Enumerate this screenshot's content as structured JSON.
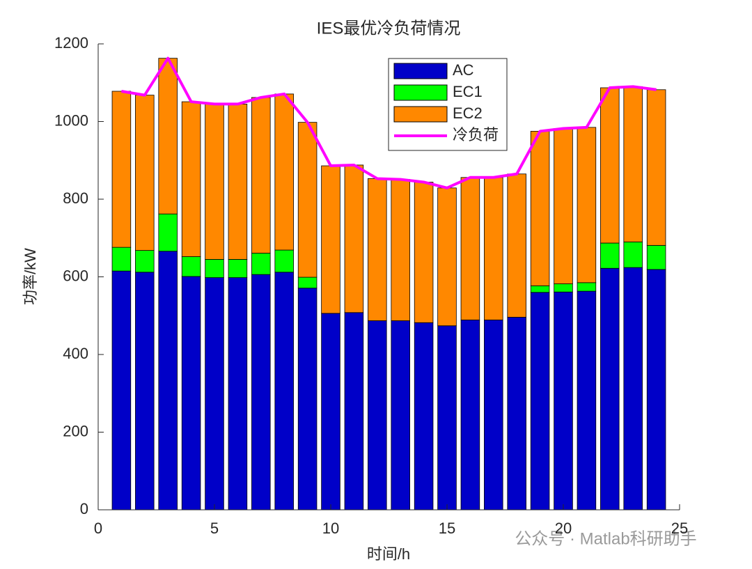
{
  "chart_data": {
    "type": "bar",
    "stacked": true,
    "title": "IES最优冷负荷情况",
    "xlabel": "时间/h",
    "ylabel": "功率/kW",
    "x": [
      1,
      2,
      3,
      4,
      5,
      6,
      7,
      8,
      9,
      10,
      11,
      12,
      13,
      14,
      15,
      16,
      17,
      18,
      19,
      20,
      21,
      22,
      23,
      24
    ],
    "series": [
      {
        "name": "AC",
        "color": "#0000c8",
        "values": [
          615,
          612,
          666,
          601,
          598,
          598,
          606,
          612,
          571,
          506,
          508,
          487,
          487,
          482,
          474,
          489,
          489,
          496,
          560,
          561,
          563,
          622,
          624,
          619
        ]
      },
      {
        "name": "EC1",
        "color": "#00ff00",
        "values": [
          61,
          56,
          96,
          51,
          47,
          47,
          55,
          57,
          28,
          0,
          0,
          0,
          0,
          0,
          0,
          0,
          0,
          0,
          17,
          21,
          22,
          65,
          66,
          62
        ]
      },
      {
        "name": "EC2",
        "color": "#ff8800",
        "values": [
          402,
          400,
          401,
          399,
          400,
          400,
          401,
          402,
          399,
          380,
          380,
          366,
          364,
          362,
          355,
          367,
          367,
          369,
          398,
          400,
          400,
          400,
          400,
          401
        ]
      },
      {
        "name": "冷负荷",
        "type": "line",
        "color": "#ff00ff",
        "values": [
          1078,
          1068,
          1163,
          1051,
          1045,
          1045,
          1062,
          1071,
          998,
          886,
          888,
          853,
          851,
          844,
          829,
          856,
          856,
          865,
          975,
          982,
          985,
          1087,
          1090,
          1082
        ]
      }
    ],
    "xlim": [
      0,
      25
    ],
    "xticks": [
      0,
      5,
      10,
      15,
      20,
      25
    ],
    "ylim": [
      0,
      1200
    ],
    "yticks": [
      0,
      200,
      400,
      600,
      800,
      1000,
      1200
    ],
    "legend": "top-center",
    "watermark": "公众号 · Matlab科研助手"
  }
}
